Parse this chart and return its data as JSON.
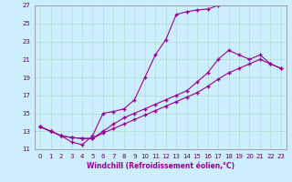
{
  "xlabel": "Windchill (Refroidissement éolien,°C)",
  "background_color": "#cceeff",
  "grid_color": "#b0ddcc",
  "line_color": "#990099",
  "xlim": [
    -0.5,
    23.5
  ],
  "ylim": [
    11,
    27
  ],
  "xticks": [
    0,
    1,
    2,
    3,
    4,
    5,
    6,
    7,
    8,
    9,
    10,
    11,
    12,
    13,
    14,
    15,
    16,
    17,
    18,
    19,
    20,
    21,
    22,
    23
  ],
  "yticks": [
    11,
    13,
    15,
    17,
    19,
    21,
    23,
    25,
    27
  ],
  "line1_x": [
    0,
    1,
    2,
    3,
    4,
    5,
    6,
    7,
    8,
    9,
    10,
    11,
    12,
    13,
    14,
    15,
    16,
    17
  ],
  "line1_y": [
    13.5,
    13.0,
    12.5,
    11.8,
    11.5,
    12.5,
    15.0,
    15.2,
    15.5,
    16.5,
    19.0,
    21.5,
    23.2,
    26.0,
    26.3,
    26.5,
    26.6,
    27.0
  ],
  "line2_x": [
    0,
    1,
    2,
    3,
    4,
    5,
    6,
    7,
    8,
    9,
    10,
    11,
    12,
    13,
    14,
    15,
    16,
    17,
    18,
    19,
    20,
    21,
    22,
    23
  ],
  "line2_y": [
    13.5,
    13.0,
    12.5,
    12.3,
    12.2,
    12.2,
    12.8,
    13.3,
    13.8,
    14.3,
    14.8,
    15.3,
    15.8,
    16.3,
    16.8,
    17.3,
    18.0,
    18.8,
    19.5,
    20.0,
    20.5,
    21.0,
    20.5,
    20.0
  ],
  "line3_x": [
    0,
    1,
    2,
    3,
    4,
    5,
    6,
    7,
    8,
    9,
    10,
    11,
    12,
    13,
    14,
    15,
    16,
    17,
    18,
    19,
    20,
    21,
    22,
    23
  ],
  "line3_y": [
    13.5,
    13.0,
    12.5,
    12.3,
    12.2,
    12.2,
    13.0,
    13.8,
    14.5,
    15.0,
    15.5,
    16.0,
    16.5,
    17.0,
    17.5,
    18.5,
    19.5,
    21.0,
    22.0,
    21.5,
    21.0,
    21.5,
    20.5,
    20.0
  ]
}
